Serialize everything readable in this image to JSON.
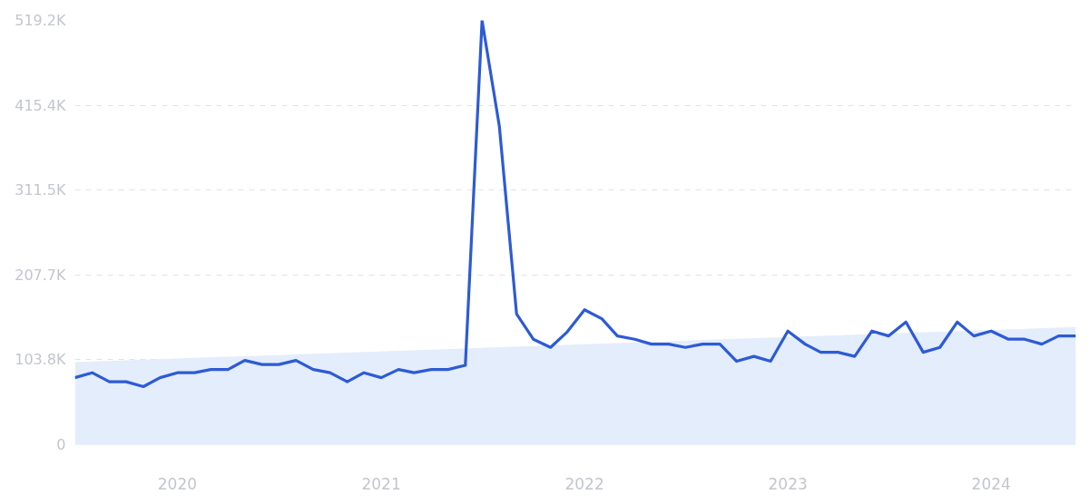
{
  "chart_data": {
    "type": "line",
    "x": [
      "2019-07",
      "2019-08",
      "2019-09",
      "2019-10",
      "2019-11",
      "2019-12",
      "2020-01",
      "2020-02",
      "2020-03",
      "2020-04",
      "2020-05",
      "2020-06",
      "2020-07",
      "2020-08",
      "2020-09",
      "2020-10",
      "2020-11",
      "2020-12",
      "2021-01",
      "2021-02",
      "2021-03",
      "2021-04",
      "2021-05",
      "2021-06",
      "2021-07",
      "2021-08",
      "2021-09",
      "2021-10",
      "2021-11",
      "2021-12",
      "2022-01",
      "2022-02",
      "2022-03",
      "2022-04",
      "2022-05",
      "2022-06",
      "2022-07",
      "2022-08",
      "2022-09",
      "2022-10",
      "2022-11",
      "2022-12",
      "2023-01",
      "2023-02",
      "2023-03",
      "2023-04",
      "2023-05",
      "2023-06",
      "2023-07",
      "2023-08",
      "2023-09",
      "2023-10",
      "2023-11",
      "2023-12",
      "2024-01",
      "2024-02",
      "2024-03",
      "2024-04",
      "2024-05",
      "2024-06"
    ],
    "series": [
      {
        "type": "area",
        "color": "#e4edfb",
        "x": [
          "2019-07",
          "2024-06"
        ],
        "values": [
          101,
          144
        ]
      },
      {
        "color": "#2d5bd6",
        "values": [
          82,
          88,
          77,
          77,
          71,
          82,
          88,
          88,
          92,
          92,
          103,
          98,
          98,
          103,
          92,
          88,
          77,
          88,
          82,
          92,
          88,
          92,
          92,
          97,
          519.2,
          390,
          160,
          129,
          119,
          138,
          165,
          154,
          133,
          129,
          123,
          123,
          119,
          123,
          123,
          102,
          108,
          102,
          139,
          123,
          113,
          113,
          108,
          139,
          133,
          150,
          113,
          119,
          150,
          133,
          139,
          129,
          129,
          123,
          133,
          133
        ]
      }
    ],
    "xlim": [
      "2019-07",
      "2024-06"
    ],
    "xticks": [
      {
        "value": "2020-01",
        "label": "2020"
      },
      {
        "value": "2021-01",
        "label": "2021"
      },
      {
        "value": "2022-01",
        "label": "2022"
      },
      {
        "value": "2023-01",
        "label": "2023"
      },
      {
        "value": "2024-01",
        "label": "2024"
      }
    ],
    "ylim": [
      0,
      519.2
    ],
    "yticks": [
      0,
      {
        "value": 103.8,
        "label": "103.8K"
      },
      {
        "value": 207.7,
        "label": "207.7K"
      },
      {
        "value": 311.5,
        "label": "311.5K"
      },
      {
        "value": 415.4,
        "label": "415.4K"
      },
      {
        "value": 519.2,
        "label": "519.2K"
      }
    ],
    "grid": "y",
    "line_style": "solid"
  }
}
